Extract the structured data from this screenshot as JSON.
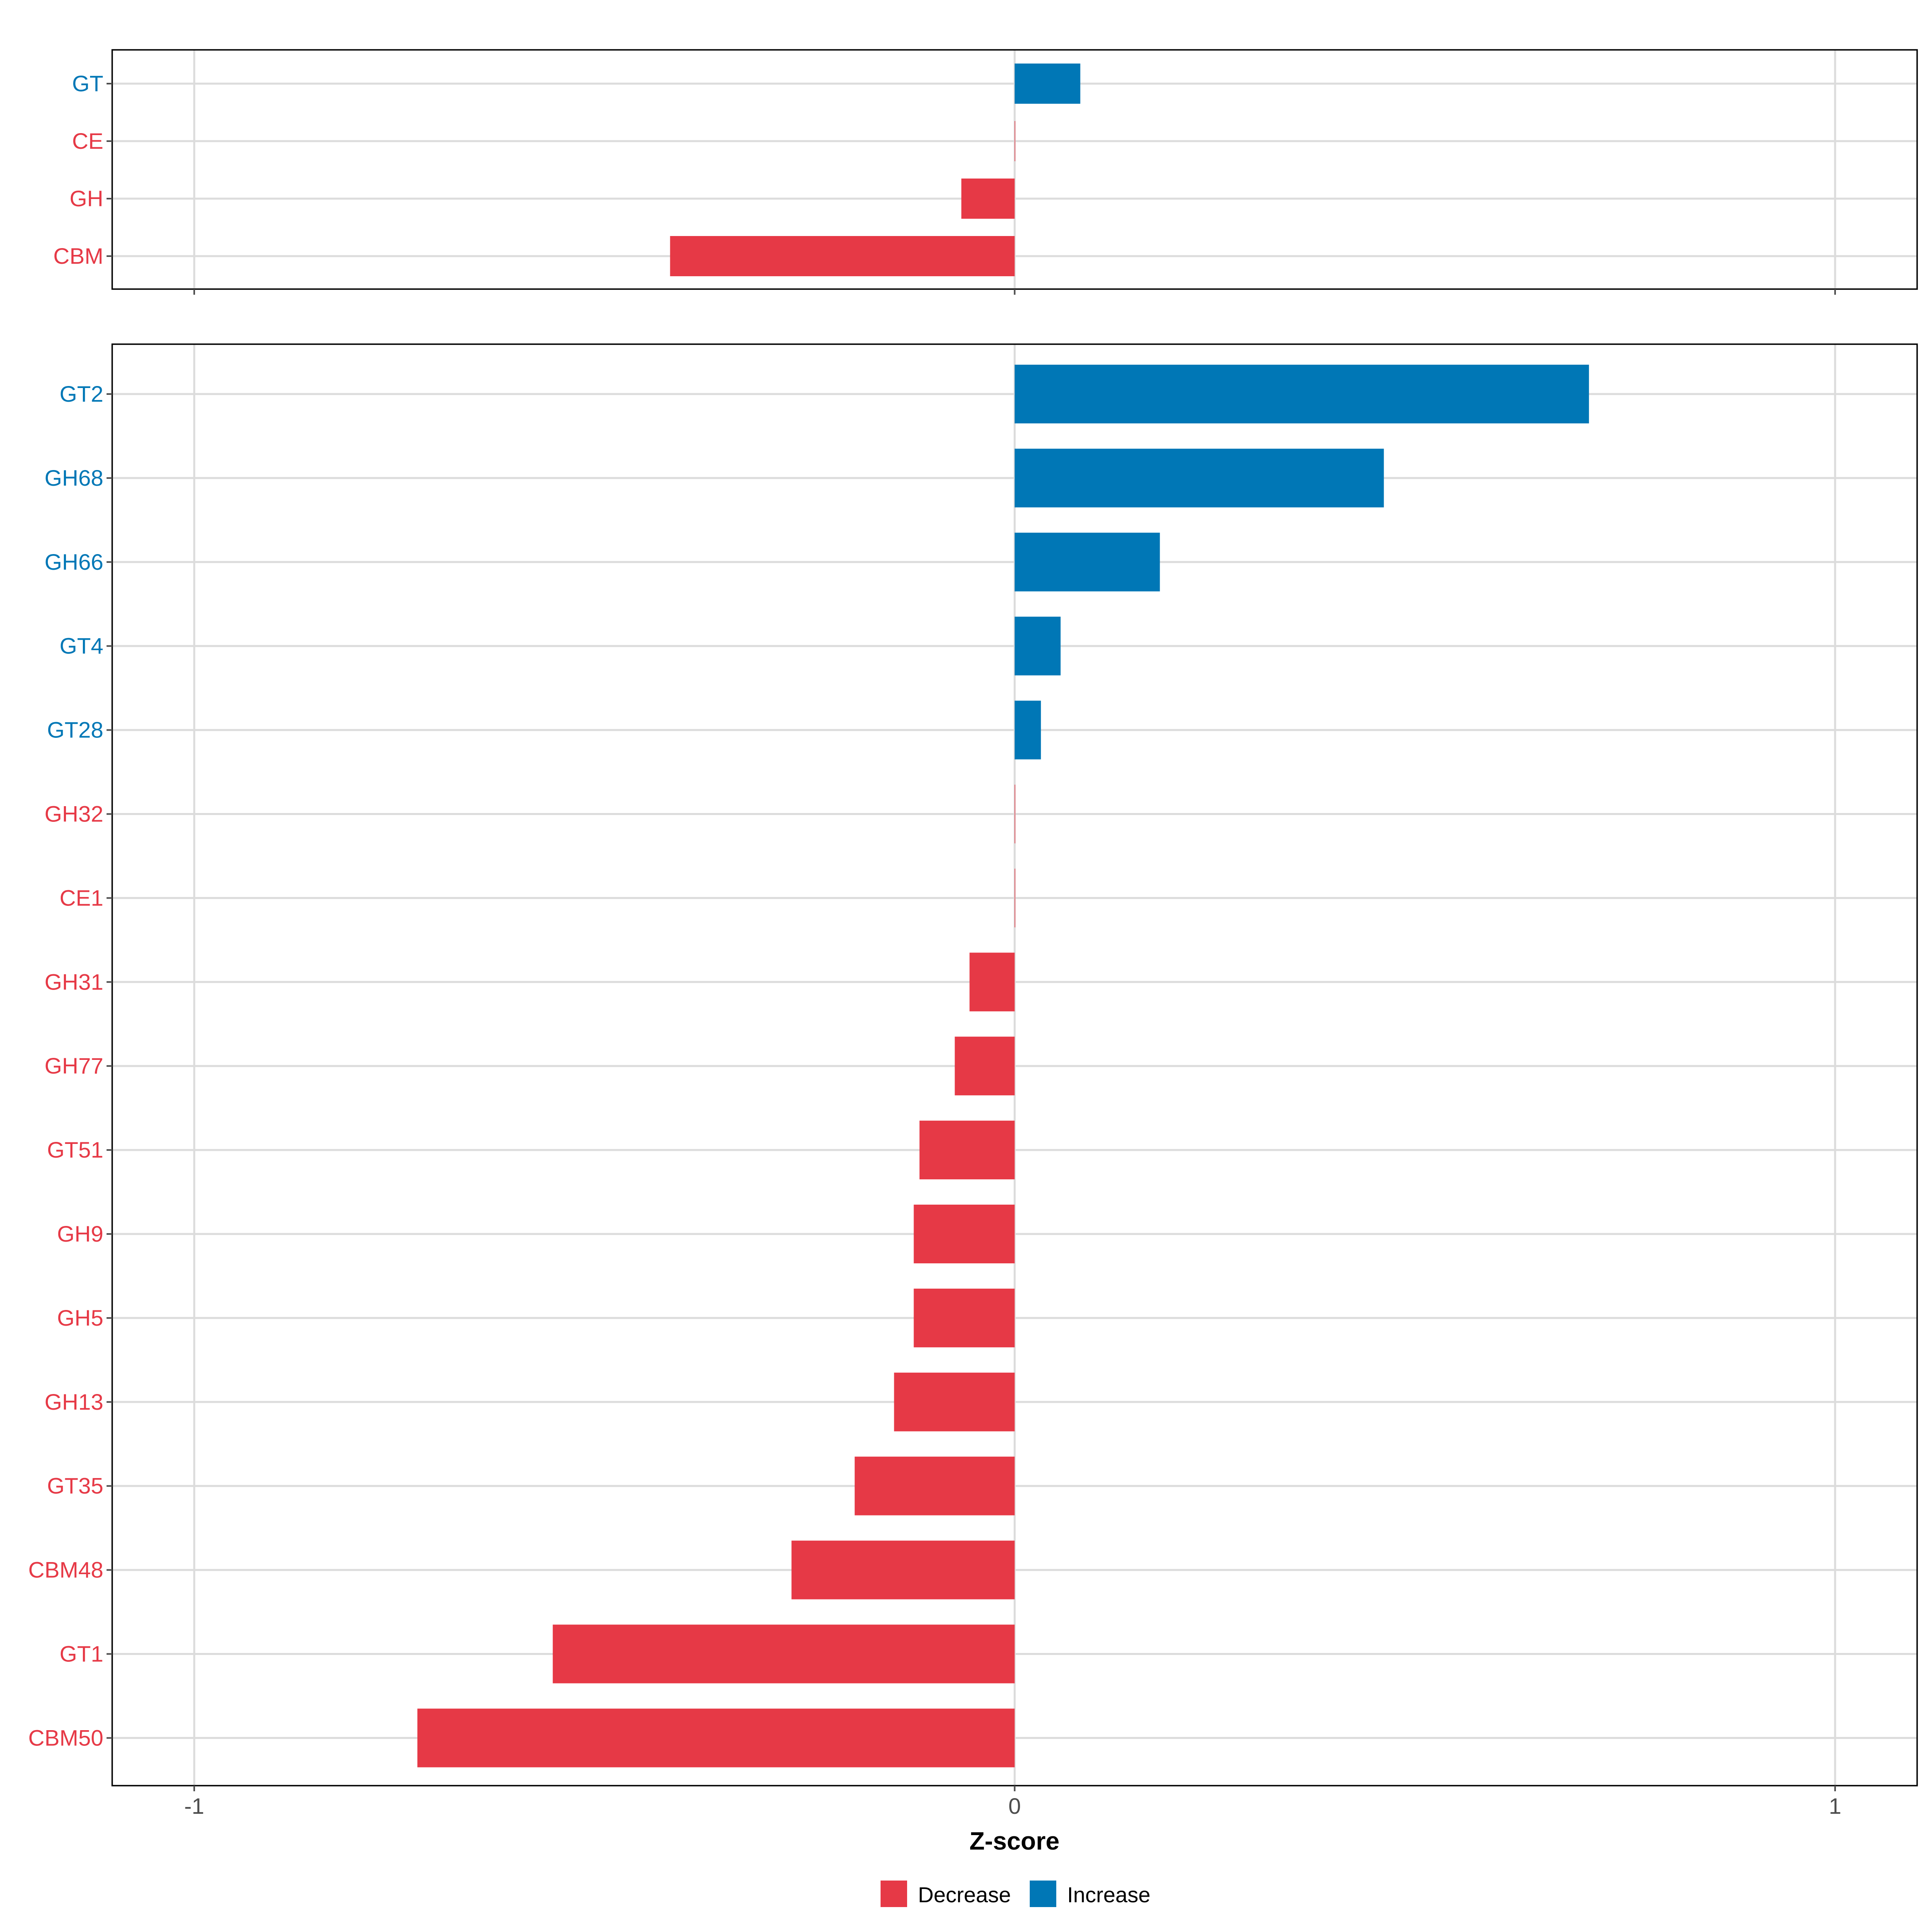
{
  "chart_data": [
    {
      "type": "bar",
      "orientation": "horizontal",
      "panel": "top",
      "categories": [
        "GT",
        "CE",
        "GH",
        "CBM"
      ],
      "values": [
        0.08,
        0.0,
        -0.065,
        -0.42
      ],
      "xlim": [
        -1.1,
        1.1
      ],
      "xticks": [
        -1,
        0,
        1
      ],
      "grid": true
    },
    {
      "type": "bar",
      "orientation": "horizontal",
      "panel": "bottom",
      "categories": [
        "GT2",
        "GH68",
        "GH66",
        "GT4",
        "GT28",
        "GH32",
        "CE1",
        "GH31",
        "GH77",
        "GT51",
        "GH9",
        "GH5",
        "GH13",
        "GT35",
        "CBM48",
        "GT1",
        "CBM50"
      ],
      "values": [
        0.7,
        0.45,
        0.177,
        0.056,
        0.032,
        0.0,
        0.0,
        -0.055,
        -0.073,
        -0.116,
        -0.123,
        -0.123,
        -0.147,
        -0.195,
        -0.272,
        -0.563,
        -0.728
      ],
      "xlim": [
        -1.1,
        1.1
      ],
      "xticks": [
        -1,
        0,
        1
      ],
      "xtick_labels": [
        "-1",
        "0",
        "1"
      ],
      "xlabel": "Z-score",
      "grid": true
    }
  ],
  "legend": {
    "placement": "bottom",
    "items": [
      {
        "label": "Decrease",
        "color": "#E63946"
      },
      {
        "label": "Increase",
        "color": "#0077B6"
      }
    ]
  },
  "colors": {
    "decrease": "#E63946",
    "increase": "#0077B6",
    "grid": "#DCDCDC",
    "axis": "#000000",
    "tick_text": "#4D4D4D"
  }
}
